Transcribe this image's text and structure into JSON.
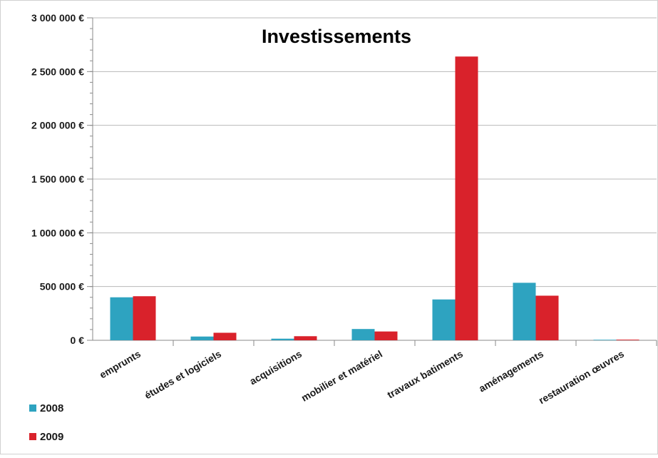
{
  "chart_data": {
    "type": "bar",
    "title": "Investissements",
    "xlabel": "",
    "ylabel": "",
    "categories": [
      "emprunts",
      "études et logiciels",
      "acquisitions",
      "mobilier et matériel",
      "travaux batiments",
      "aménagements",
      "restauration œuvres"
    ],
    "series": [
      {
        "name": "2008",
        "color": "#2ea3c0",
        "values": [
          400000,
          35000,
          15000,
          105000,
          380000,
          535000,
          5000
        ]
      },
      {
        "name": "2009",
        "color": "#d9222b",
        "values": [
          410000,
          70000,
          38000,
          82000,
          2640000,
          415000,
          6000
        ]
      }
    ],
    "ylim": [
      0,
      3000000
    ],
    "yticks": [
      0,
      500000,
      1000000,
      1500000,
      2000000,
      2500000,
      3000000
    ],
    "ytick_labels": [
      "0 €",
      "500 000 €",
      "1 000 000 €",
      "1 500 000 €",
      "2 000 000 €",
      "2 500 000 €",
      "3 000 000 €"
    ],
    "grid": true,
    "legend_position": "bottom-left"
  }
}
